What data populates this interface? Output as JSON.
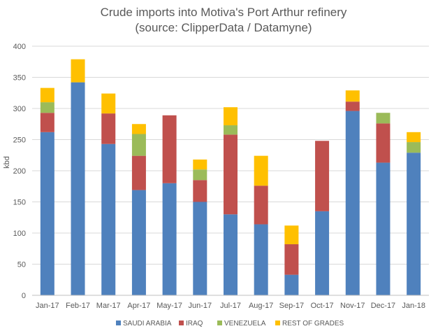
{
  "chart_data": {
    "type": "bar",
    "stacked": true,
    "title": "Crude imports into Motiva's Port Arthur refinery",
    "subtitle": "(source: ClipperData / Datamyne)",
    "xlabel": "",
    "ylabel": "kbd",
    "ylim": [
      0,
      400
    ],
    "yticks": [
      0,
      50,
      100,
      150,
      200,
      250,
      300,
      350,
      400
    ],
    "grid": true,
    "legend_position": "bottom",
    "categories": [
      "Jan-17",
      "Feb-17",
      "Mar-17",
      "Apr-17",
      "May-17",
      "Jun-17",
      "Jul-17",
      "Aug-17",
      "Sep-17",
      "Oct-17",
      "Nov-17",
      "Dec-17",
      "Jan-18"
    ],
    "series": [
      {
        "name": "SAUDI ARABIA",
        "color": "#4f81bd",
        "values": [
          262,
          342,
          243,
          169,
          180,
          150,
          130,
          114,
          33,
          135,
          296,
          213,
          229
        ]
      },
      {
        "name": "IRAQ",
        "color": "#c0504d",
        "values": [
          31,
          0,
          49,
          55,
          109,
          35,
          128,
          62,
          49,
          113,
          15,
          63,
          0
        ]
      },
      {
        "name": "VENEZUELA",
        "color": "#9bbb59",
        "values": [
          17,
          0,
          0,
          35,
          0,
          17,
          15,
          0,
          0,
          0,
          0,
          17,
          17
        ]
      },
      {
        "name": "REST OF GRADES",
        "color": "#ffc000",
        "values": [
          23,
          37,
          32,
          16,
          0,
          16,
          29,
          48,
          30,
          0,
          18,
          0,
          16
        ]
      }
    ]
  }
}
